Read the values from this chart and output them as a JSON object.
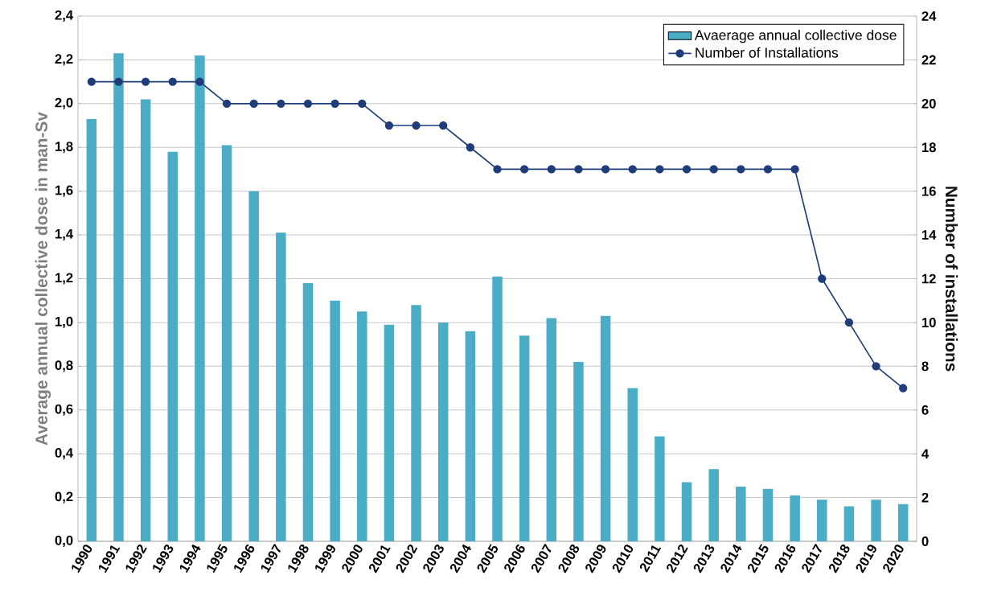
{
  "chart_data": {
    "type": "bar",
    "categories": [
      "1990",
      "1991",
      "1992",
      "1993",
      "1994",
      "1995",
      "1996",
      "1997",
      "1998",
      "1999",
      "2000",
      "2001",
      "2002",
      "2003",
      "2004",
      "2005",
      "2006",
      "2007",
      "2008",
      "2009",
      "2010",
      "2011",
      "2012",
      "2013",
      "2014",
      "2015",
      "2016",
      "2017",
      "2018",
      "2019",
      "2020"
    ],
    "series": [
      {
        "name": "Avaerage annual collective dose",
        "color": "#4bacc6",
        "values": [
          1.93,
          2.23,
          2.02,
          1.78,
          2.22,
          1.81,
          1.6,
          1.41,
          1.18,
          1.1,
          1.05,
          0.99,
          1.08,
          1.0,
          0.96,
          1.21,
          0.94,
          1.02,
          0.82,
          1.03,
          0.7,
          0.48,
          0.27,
          0.33,
          0.25,
          0.24,
          0.21,
          0.19,
          0.16,
          0.19,
          0.17
        ]
      },
      {
        "name": "Number of Installations",
        "type": "line",
        "axis": "y2",
        "marker": "circle",
        "color": "#1f3d7a",
        "values": [
          21,
          21,
          21,
          21,
          21,
          20,
          20,
          20,
          20,
          20,
          20,
          19,
          19,
          19,
          18,
          17,
          17,
          17,
          17,
          17,
          17,
          17,
          17,
          17,
          17,
          17,
          17,
          12,
          10,
          8,
          7
        ]
      }
    ],
    "ylabel": "Average annual collective dose in man-Sv",
    "y2label": "Number of installations",
    "ylim": [
      0,
      2.4
    ],
    "yticks": [
      {
        "value": 0,
        "label": "0,0"
      },
      {
        "value": 0.2,
        "label": "0,2"
      },
      {
        "value": 0.4,
        "label": "0,4"
      },
      {
        "value": 0.6,
        "label": "0,6"
      },
      {
        "value": 0.8,
        "label": "0,8"
      },
      {
        "value": 1.0,
        "label": "1,0"
      },
      {
        "value": 1.2,
        "label": "1,2"
      },
      {
        "value": 1.4,
        "label": "1,4"
      },
      {
        "value": 1.6,
        "label": "1,6"
      },
      {
        "value": 1.8,
        "label": "1,8"
      },
      {
        "value": 2.0,
        "label": "2,0"
      },
      {
        "value": 2.2,
        "label": "2,2"
      },
      {
        "value": 2.4,
        "label": "2,4"
      }
    ],
    "y2lim": [
      0,
      24
    ],
    "y2ticks": [
      0,
      2,
      4,
      6,
      8,
      10,
      12,
      14,
      16,
      18,
      20,
      22,
      24
    ],
    "grid": "y",
    "legend": "top right"
  }
}
